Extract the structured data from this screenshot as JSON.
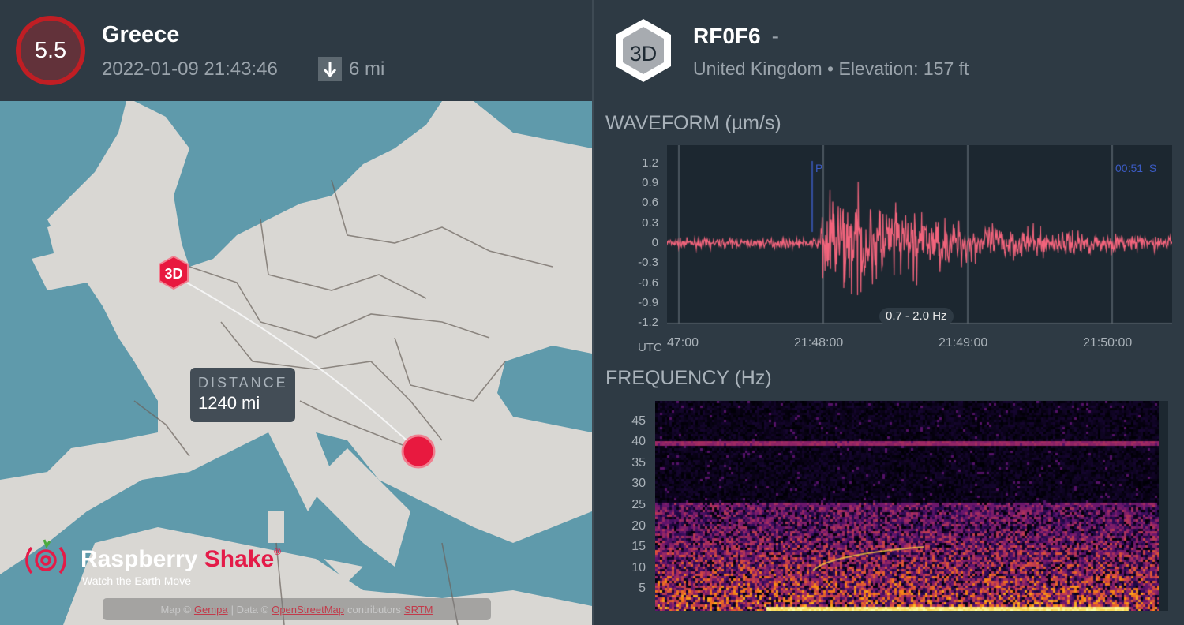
{
  "event": {
    "magnitude": "5.5",
    "region": "Greece",
    "datetime": "2022-01-09 21:43:46",
    "depth": "6 mi",
    "depth_icon": "arrow-down-icon",
    "color": "#c01e24"
  },
  "map": {
    "distance_label": "DISTANCE",
    "distance_value": "1240 mi",
    "station_marker": "3D",
    "epicenter_color": "#e8193f",
    "logo": {
      "name_a": "Raspberry",
      "name_b": "Shake",
      "reg": "®",
      "tagline": "Watch the Earth Move"
    },
    "attribution": {
      "map_prefix": "Map ©",
      "map_link": "Gempa",
      "data_prefix": "| Data ©",
      "data_link": "OpenStreetMap",
      "contrib": "contributors",
      "srtm": "SRTM"
    }
  },
  "station": {
    "badge": "3D",
    "code": "RF0F6",
    "dash": "-",
    "country_line": "United Kingdom • Elevation: 157 ft"
  },
  "waveform": {
    "title": "WAVEFORM (µm/s)",
    "y_ticks": [
      "1.2",
      "0.9",
      "0.6",
      "0.3",
      "0",
      "-0.3",
      "-0.6",
      "-0.9",
      "-1.2"
    ],
    "x_ticks": [
      "47:00",
      "21:48:00",
      "21:49:00",
      "21:50:00"
    ],
    "x_unit": "UTC",
    "p_label": "P",
    "s_label": "00:51  S",
    "band": "0.7 - 2.0 Hz",
    "color": "#f2647c",
    "ylim": [
      -1.2,
      1.4
    ]
  },
  "frequency": {
    "title": "FREQUENCY (Hz)",
    "y_ticks": [
      "45",
      "40",
      "35",
      "30",
      "25",
      "20",
      "15",
      "10",
      "5"
    ],
    "ylim": [
      0,
      50
    ],
    "colormap": "inferno"
  }
}
